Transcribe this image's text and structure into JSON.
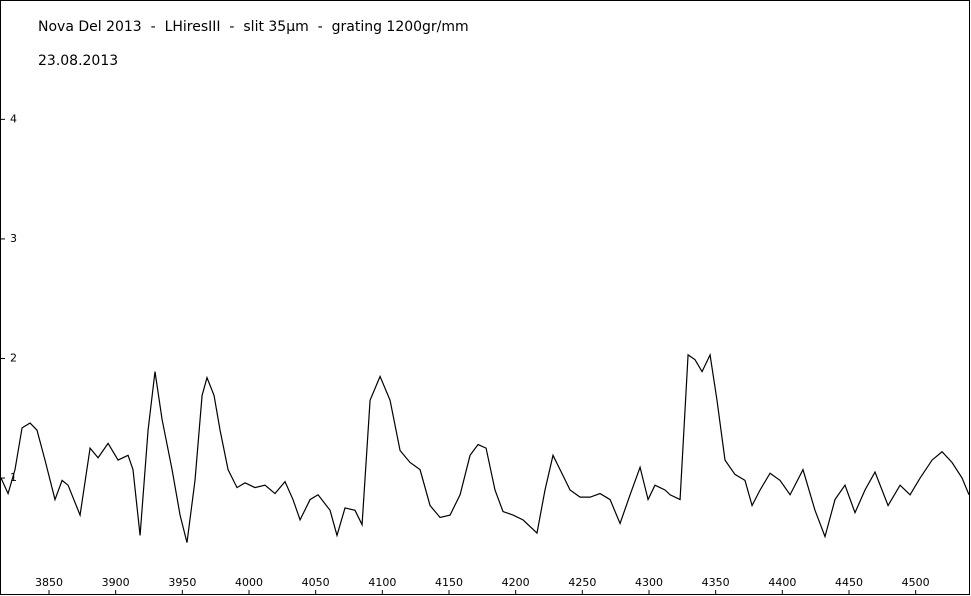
{
  "chart_data": {
    "type": "line",
    "title": "Nova Del 2013  -  LHiresIII  -  slit 35µm  -  grating 1200gr/mm",
    "subtitle": "23.08.2013",
    "x": [
      3814,
      3819.3,
      3824.5,
      3829.8,
      3835.8,
      3841,
      3847,
      3854.5,
      3859.8,
      3864.3,
      3873.3,
      3880.8,
      3886.8,
      3894.3,
      3901.8,
      3909.3,
      3913,
      3918.3,
      3924.3,
      3929.5,
      3934.8,
      3942.3,
      3948.3,
      3953.5,
      3959.5,
      3964.8,
      3968.5,
      3973.8,
      3978.3,
      3984.3,
      3991,
      3997,
      4004.5,
      4012,
      4019.5,
      4027,
      4033,
      4038.3,
      4045.8,
      4051.8,
      4060.8,
      4066,
      4072,
      4079.5,
      4084.8,
      4090.8,
      4098.3,
      4105.8,
      4113.3,
      4120.8,
      4128.3,
      4135.8,
      4143.3,
      4150.8,
      4158.3,
      4165.8,
      4171.8,
      4177.8,
      4184.5,
      4190.5,
      4198,
      4205.5,
      4216,
      4222,
      4228,
      4233.3,
      4240.8,
      4248.3,
      4255.8,
      4263.3,
      4270.8,
      4278.3,
      4285.8,
      4293.3,
      4299.3,
      4304.5,
      4312,
      4315.8,
      4323.3,
      4329.3,
      4334.5,
      4339.8,
      4345.8,
      4351,
      4357,
      4364.5,
      4372,
      4377.3,
      4383.3,
      4390.8,
      4398.3,
      4405.8,
      4415.5,
      4424.5,
      4432,
      4439.5,
      4447,
      4454.5,
      4462,
      4469.5,
      4479.3,
      4488.3,
      4495.8,
      4503.3,
      4512.3,
      4519.8,
      4527.3,
      4534.8,
      4540
    ],
    "series": [
      {
        "color": "#000000",
        "values": [
          1.0,
          0.87,
          1.07,
          1.42,
          1.46,
          1.4,
          1.15,
          0.82,
          0.98,
          0.94,
          0.69,
          1.25,
          1.17,
          1.29,
          1.15,
          1.19,
          1.07,
          0.52,
          1.4,
          1.89,
          1.49,
          1.07,
          0.69,
          0.46,
          0.98,
          1.69,
          1.84,
          1.69,
          1.4,
          1.07,
          0.92,
          0.96,
          0.92,
          0.94,
          0.87,
          0.97,
          0.82,
          0.65,
          0.82,
          0.86,
          0.73,
          0.52,
          0.75,
          0.73,
          0.61,
          1.65,
          1.85,
          1.65,
          1.23,
          1.13,
          1.07,
          0.77,
          0.67,
          0.69,
          0.86,
          1.19,
          1.28,
          1.25,
          0.9,
          0.72,
          0.69,
          0.65,
          0.54,
          0.9,
          1.19,
          1.07,
          0.9,
          0.84,
          0.84,
          0.87,
          0.82,
          0.62,
          0.86,
          1.09,
          0.82,
          0.94,
          0.9,
          0.86,
          0.82,
          2.03,
          1.99,
          1.89,
          2.03,
          1.65,
          1.15,
          1.03,
          0.98,
          0.77,
          0.9,
          1.04,
          0.98,
          0.86,
          1.07,
          0.73,
          0.51,
          0.82,
          0.94,
          0.71,
          0.9,
          1.05,
          0.77,
          0.94,
          0.86,
          1.0,
          1.15,
          1.22,
          1.13,
          1.0,
          0.86
        ]
      }
    ],
    "xlim": [
      3814,
      4540
    ],
    "xticks": [
      3850,
      3900,
      3950,
      4000,
      4050,
      4100,
      4150,
      4200,
      4250,
      4300,
      4350,
      4400,
      4450,
      4500
    ],
    "ylim": [
      0.03,
      4.99
    ],
    "yticks": [
      1,
      2,
      3,
      4
    ]
  }
}
